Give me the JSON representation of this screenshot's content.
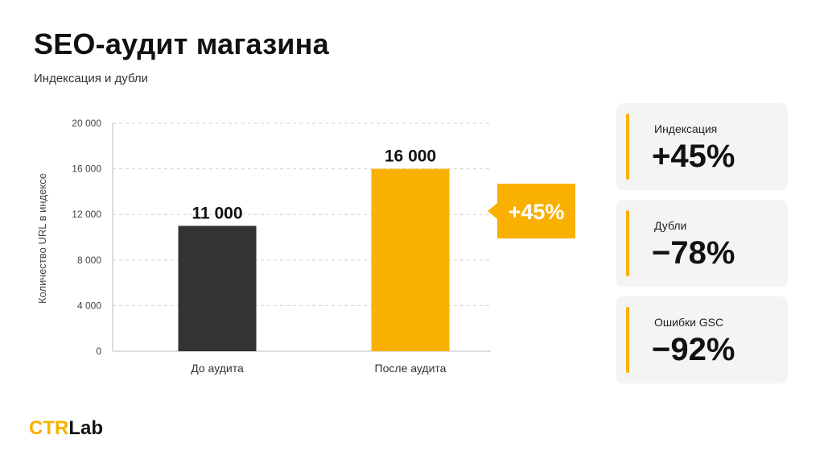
{
  "header": {
    "title": "SEO-аудит магазина",
    "subtitle": "Индексация и дубли"
  },
  "chart_data": {
    "type": "bar",
    "ylabel": "Количество URL в индексе",
    "xlabel": "",
    "ylim": [
      0,
      20000
    ],
    "yticks": [
      0,
      4000,
      8000,
      12000,
      16000,
      20000
    ],
    "ytick_labels": [
      "0",
      "4 000",
      "8 000",
      "12 000",
      "16 000",
      "20 000"
    ],
    "grid": true,
    "categories": [
      "До аудита",
      "После аудита"
    ],
    "values": [
      11000,
      16000
    ],
    "value_labels": [
      "11 000",
      "16 000"
    ],
    "bar_colors": [
      "#333333",
      "#f9b000"
    ],
    "annotation": {
      "text": "+45%",
      "color": "#f9b000"
    }
  },
  "cards": [
    {
      "label": "Индексация",
      "value": "+45%"
    },
    {
      "label": "Дубли",
      "value": "−78%"
    },
    {
      "label": "Ошибки GSC",
      "value": "−92%"
    }
  ],
  "brand": {
    "part1": "CTR",
    "part2": "Lab",
    "accent": "#f9b000"
  }
}
